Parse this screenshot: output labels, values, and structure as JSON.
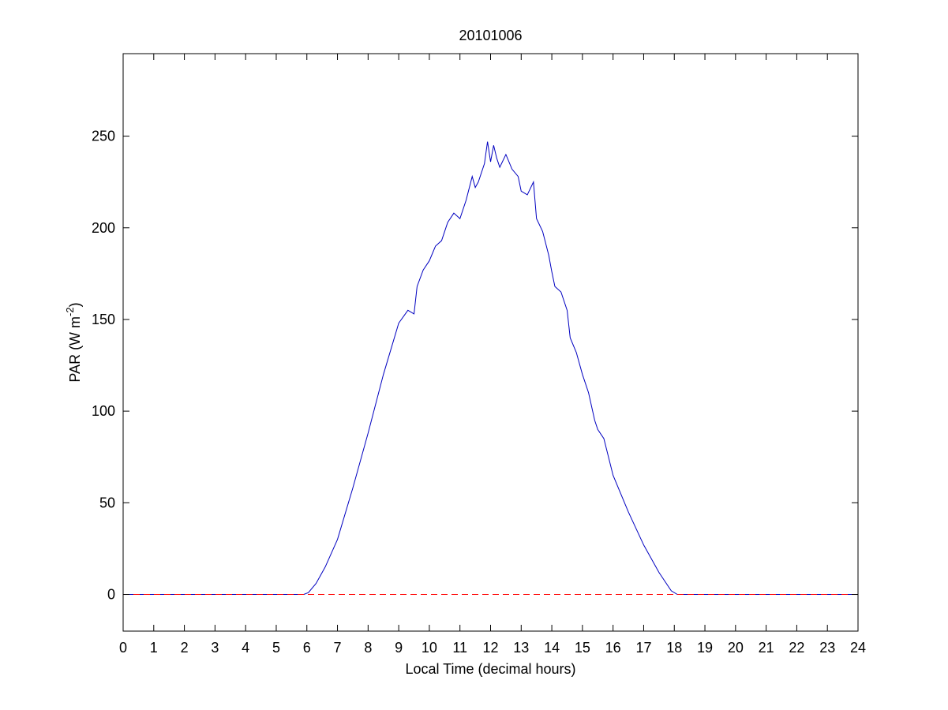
{
  "chart_data": {
    "type": "line",
    "title": "20101006",
    "xlabel": "Local Time (decimal hours)",
    "ylabel": {
      "base": "PAR (W m",
      "superscript": "-2",
      "suffix": ")"
    },
    "xlim": [
      0,
      24
    ],
    "ylim": [
      -20,
      295
    ],
    "xticks": [
      0,
      1,
      2,
      3,
      4,
      5,
      6,
      7,
      8,
      9,
      10,
      11,
      12,
      13,
      14,
      15,
      16,
      17,
      18,
      19,
      20,
      21,
      22,
      23,
      24
    ],
    "yticks": [
      0,
      50,
      100,
      150,
      200,
      250
    ],
    "grid": false,
    "legend": "none",
    "series": [
      {
        "color": "#0000c0",
        "style": "solid",
        "x": [
          0,
          5.9,
          6.05,
          6.3,
          6.6,
          7.0,
          7.5,
          8.0,
          8.5,
          9.0,
          9.3,
          9.5,
          9.6,
          9.8,
          10.0,
          10.2,
          10.4,
          10.6,
          10.8,
          11.0,
          11.2,
          11.4,
          11.5,
          11.6,
          11.8,
          11.9,
          12.0,
          12.1,
          12.2,
          12.3,
          12.5,
          12.7,
          12.9,
          13.0,
          13.2,
          13.4,
          13.5,
          13.7,
          13.9,
          14.0,
          14.1,
          14.3,
          14.5,
          14.6,
          14.8,
          15.0,
          15.2,
          15.4,
          15.5,
          15.7,
          16.0,
          16.5,
          17.0,
          17.5,
          17.9,
          18.1,
          24
        ],
        "y": [
          0,
          0,
          1,
          6,
          15,
          30,
          58,
          88,
          120,
          148,
          155,
          153,
          168,
          177,
          182,
          190,
          193,
          203,
          208,
          205,
          215,
          228,
          222,
          225,
          235,
          247,
          236,
          245,
          238,
          233,
          240,
          232,
          228,
          220,
          218,
          225,
          205,
          198,
          185,
          176,
          168,
          165,
          155,
          140,
          132,
          120,
          110,
          95,
          90,
          85,
          65,
          45,
          27,
          12,
          2,
          0,
          0
        ]
      },
      {
        "color": "#ff0000",
        "style": "dashed",
        "x": [
          0,
          24
        ],
        "y": [
          0,
          0
        ]
      }
    ]
  }
}
